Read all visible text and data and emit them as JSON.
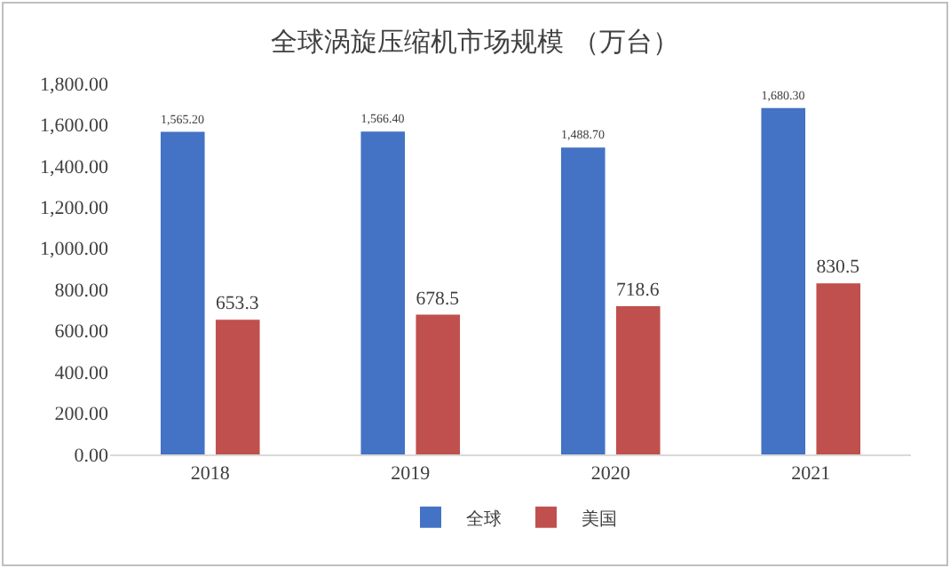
{
  "chart_data": {
    "type": "bar",
    "title": "全球涡旋压缩机市场规模 （万台）",
    "categories": [
      "2018",
      "2019",
      "2020",
      "2021"
    ],
    "series": [
      {
        "name": "全球",
        "color": "#4472c4",
        "values": [
          1565.2,
          1566.4,
          1488.7,
          1680.3
        ],
        "value_labels": [
          "1,565.20",
          "1,566.40",
          "1,488.70",
          "1,680.30"
        ]
      },
      {
        "name": "美国",
        "color": "#c0504d",
        "values": [
          653.3,
          678.5,
          718.6,
          830.5
        ],
        "value_labels": [
          "653.3",
          "678.5",
          "718.6",
          "830.5"
        ]
      }
    ],
    "ylim": [
      0,
      1800
    ],
    "yticks": [
      {
        "value": 0,
        "label": "0.00"
      },
      {
        "value": 200,
        "label": "200.00"
      },
      {
        "value": 400,
        "label": "400.00"
      },
      {
        "value": 600,
        "label": "600.00"
      },
      {
        "value": 800,
        "label": "800.00"
      },
      {
        "value": 1000,
        "label": "1,000.00"
      },
      {
        "value": 1200,
        "label": "1,200.00"
      },
      {
        "value": 1400,
        "label": "1,400.00"
      },
      {
        "value": 1600,
        "label": "1,600.00"
      },
      {
        "value": 1800,
        "label": "1,800.00"
      }
    ],
    "grid": false,
    "legend": "bottom"
  }
}
